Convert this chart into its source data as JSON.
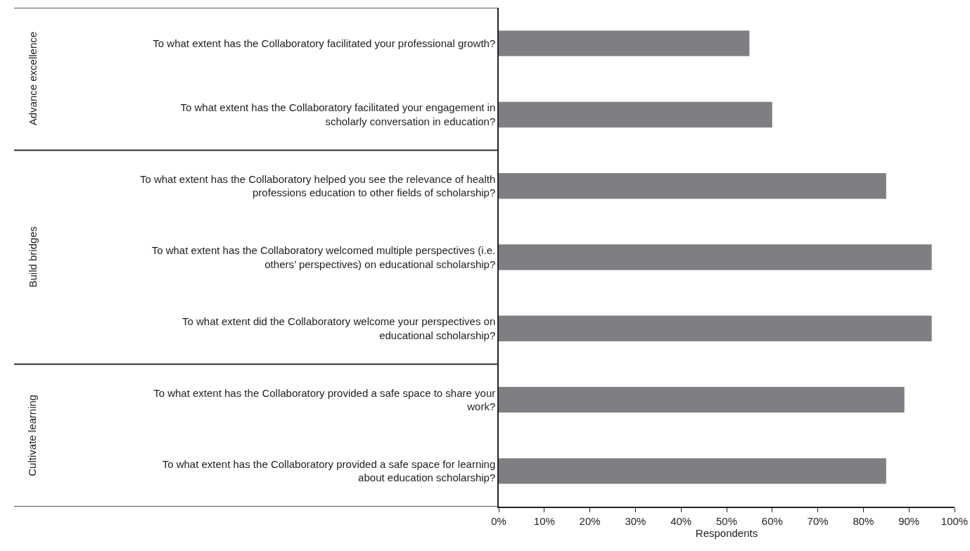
{
  "chart_data": {
    "type": "bar",
    "orientation": "horizontal",
    "xlabel": "Respondents",
    "categories": [
      "To what extent has the Collaboratory facilitated your professional growth?",
      "To what extent has the Collaboratory facilitated your engagement in scholarly conversation in education?",
      "To what extent has the Collaboratory helped you see the relevance of health professions education to other fields of scholarship?",
      "To what extent has the Collaboratory welcomed multiple perspectives (i.e. others’ perspectives) on educational scholarship?",
      "To what extent did the Collaboratory welcome your perspectives on educational scholarship?",
      "To what extent has the Collaboratory provided a safe space to share your work?",
      "To what extent has the Collaboratory provided a safe space for learning about education scholarship?"
    ],
    "values": [
      55,
      60,
      85,
      95,
      95,
      89,
      85
    ],
    "color": "#7e7f83",
    "xlim": [
      0,
      100
    ],
    "xticks": [
      {
        "value": 0,
        "label": "0%"
      },
      {
        "value": 10,
        "label": "10%"
      },
      {
        "value": 20,
        "label": "20%"
      },
      {
        "value": 30,
        "label": "30%"
      },
      {
        "value": 40,
        "label": "40%"
      },
      {
        "value": 50,
        "label": "50%"
      },
      {
        "value": 60,
        "label": "60%"
      },
      {
        "value": 70,
        "label": "70%"
      },
      {
        "value": 80,
        "label": "80%"
      },
      {
        "value": 90,
        "label": "90%"
      },
      {
        "value": 100,
        "label": "100%"
      }
    ],
    "annotations": [
      "Advance excellence",
      "Build bridges",
      "Cultivate learning"
    ]
  }
}
